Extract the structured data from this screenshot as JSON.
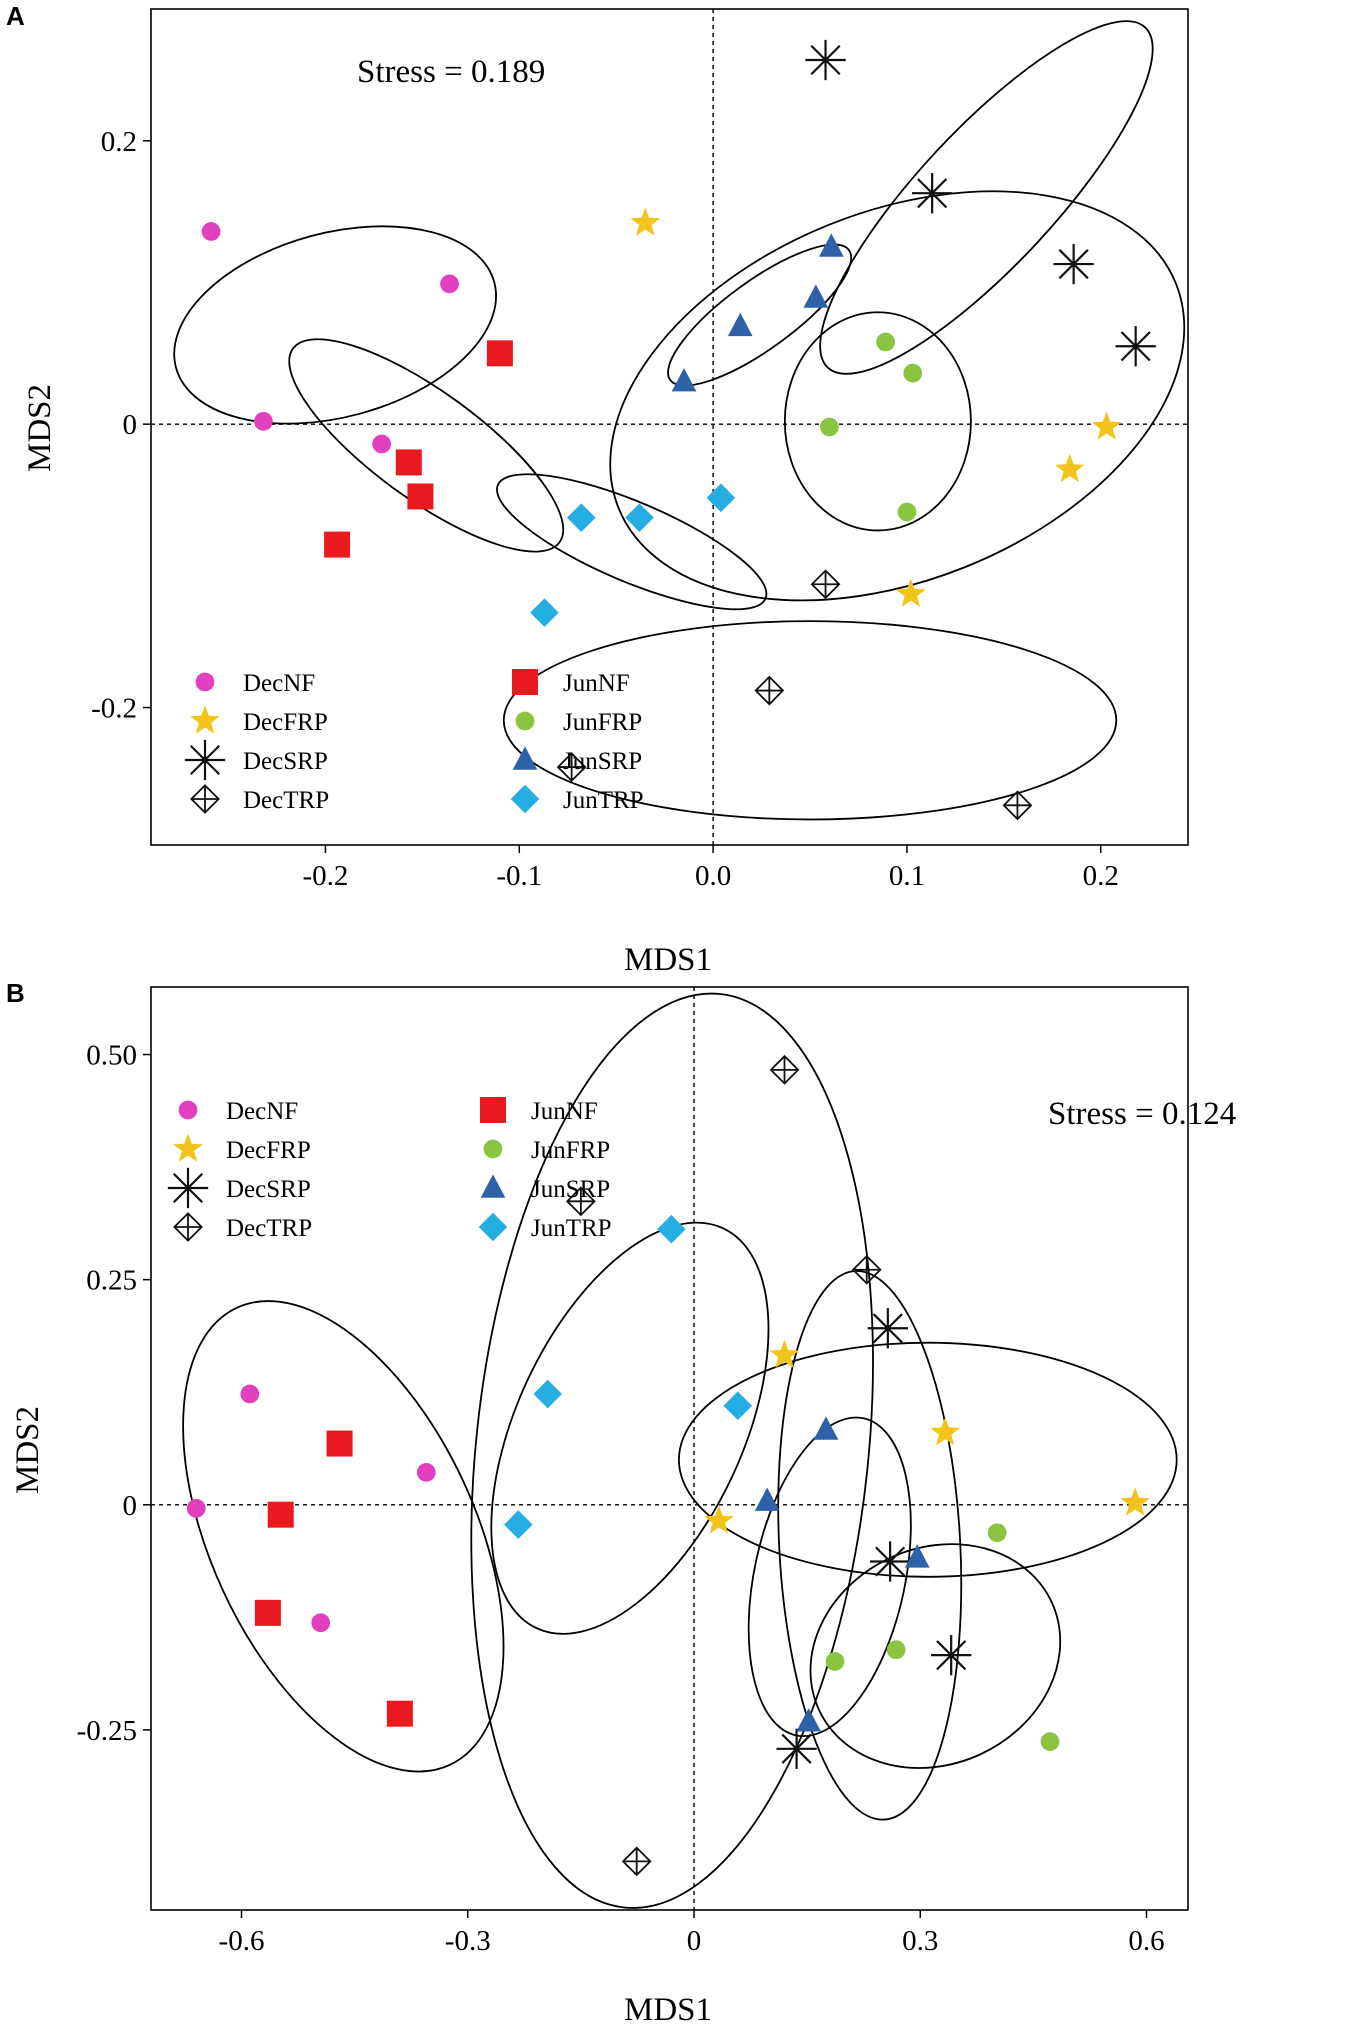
{
  "groups": {
    "DecNF": {
      "marker": "circle",
      "color": "#e23fbf"
    },
    "DecFRP": {
      "marker": "star",
      "color": "#f2c419"
    },
    "DecSRP": {
      "marker": "asterisk",
      "color": "#111111"
    },
    "DecTRP": {
      "marker": "crossdiamond",
      "color": "#111111"
    },
    "JunNF": {
      "marker": "square",
      "color": "#e8191f"
    },
    "JunFRP": {
      "marker": "circle",
      "color": "#8ac441"
    },
    "JunSRP": {
      "marker": "triangle",
      "color": "#2e62a8"
    },
    "JunTRP": {
      "marker": "diamond",
      "color": "#26aee3"
    }
  },
  "legend_order": [
    [
      "DecNF",
      "JunNF"
    ],
    [
      "DecFRP",
      "JunFRP"
    ],
    [
      "DecSRP",
      "JunSRP"
    ],
    [
      "DecTRP",
      "JunTRP"
    ]
  ],
  "chart_data": [
    {
      "panel": "A",
      "type": "scatter",
      "title": "",
      "annotation": "Stress = 0.189",
      "xlabel": "MDS1",
      "ylabel": "MDS2",
      "xlim": [
        -0.29,
        0.245
      ],
      "ylim": [
        -0.297,
        0.293
      ],
      "xticks": [
        -0.2,
        -0.1,
        0.0,
        0.1,
        0.2
      ],
      "xtick_labels": [
        "-0.2",
        "-0.1",
        "0.0",
        "0.1",
        "0.2"
      ],
      "yticks": [
        -0.2,
        0,
        0.2
      ],
      "ytick_labels": [
        "-0.2",
        "0",
        "0.2"
      ],
      "reference_lines": {
        "x": 0,
        "y": 0
      },
      "legend_position": "bottom-left",
      "series": [
        {
          "name": "DecNF",
          "points": [
            [
              -0.259,
              0.136
            ],
            [
              -0.136,
              0.099
            ],
            [
              -0.232,
              0.002
            ],
            [
              -0.171,
              -0.014
            ]
          ]
        },
        {
          "name": "JunNF",
          "points": [
            [
              -0.11,
              0.05
            ],
            [
              -0.157,
              -0.027
            ],
            [
              -0.151,
              -0.051
            ],
            [
              -0.194,
              -0.085
            ]
          ]
        },
        {
          "name": "DecFRP",
          "points": [
            [
              -0.035,
              0.142
            ],
            [
              0.203,
              -0.002
            ],
            [
              0.184,
              -0.032
            ],
            [
              0.102,
              -0.12
            ]
          ]
        },
        {
          "name": "JunFRP",
          "points": [
            [
              0.089,
              0.058
            ],
            [
              0.103,
              0.036
            ],
            [
              0.06,
              -0.002
            ],
            [
              0.1,
              -0.062
            ]
          ]
        },
        {
          "name": "DecSRP",
          "points": [
            [
              0.058,
              0.257
            ],
            [
              0.113,
              0.163
            ],
            [
              0.186,
              0.113
            ],
            [
              0.218,
              0.055
            ]
          ]
        },
        {
          "name": "JunSRP",
          "points": [
            [
              -0.015,
              0.03
            ],
            [
              0.014,
              0.069
            ],
            [
              0.053,
              0.089
            ],
            [
              0.061,
              0.125
            ]
          ]
        },
        {
          "name": "DecTRP",
          "points": [
            [
              0.058,
              -0.113
            ],
            [
              0.029,
              -0.188
            ],
            [
              -0.073,
              -0.242
            ],
            [
              0.157,
              -0.269
            ]
          ]
        },
        {
          "name": "JunTRP",
          "points": [
            [
              -0.087,
              -0.133
            ],
            [
              -0.068,
              -0.066
            ],
            [
              -0.038,
              -0.066
            ],
            [
              0.004,
              -0.052
            ]
          ]
        }
      ],
      "ellipses": [
        {
          "group": "DecNF",
          "cx": -0.195,
          "cy": 0.07,
          "rx": 0.085,
          "ry": 0.065,
          "angle": -15
        },
        {
          "group": "JunNF",
          "cx": -0.148,
          "cy": -0.015,
          "rx": 0.085,
          "ry": 0.038,
          "angle": 36
        },
        {
          "group": "DecFRP",
          "cx": 0.095,
          "cy": 0.02,
          "rx": 0.155,
          "ry": 0.13,
          "angle": -22
        },
        {
          "group": "JunFRP",
          "cx": 0.085,
          "cy": 0.002,
          "rx": 0.048,
          "ry": 0.077,
          "angle": 0
        },
        {
          "group": "DecSRP",
          "cx": 0.141,
          "cy": 0.16,
          "rx": 0.12,
          "ry": 0.048,
          "angle": -47
        },
        {
          "group": "JunSRP",
          "cx": 0.024,
          "cy": 0.077,
          "rx": 0.057,
          "ry": 0.024,
          "angle": -36
        },
        {
          "group": "DecTRP",
          "cx": 0.05,
          "cy": -0.209,
          "rx": 0.158,
          "ry": 0.07,
          "angle": 0
        },
        {
          "group": "JunTRP",
          "cx": -0.042,
          "cy": -0.083,
          "rx": 0.075,
          "ry": 0.028,
          "angle": 23
        }
      ]
    },
    {
      "panel": "B",
      "type": "scatter",
      "title": "",
      "annotation": "Stress = 0.124",
      "xlabel": "MDS1",
      "ylabel": "MDS2",
      "xlim": [
        -0.72,
        0.655
      ],
      "ylim": [
        -0.45,
        0.575
      ],
      "xticks": [
        -0.6,
        -0.3,
        0,
        0.3,
        0.6
      ],
      "xtick_labels": [
        "-0.6",
        "-0.3",
        "0",
        "0.3",
        "0.6"
      ],
      "yticks": [
        -0.25,
        0,
        0.25,
        0.5
      ],
      "ytick_labels": [
        "-0.25",
        "0",
        "0.25",
        "0.50"
      ],
      "reference_lines": {
        "x": 0,
        "y": 0
      },
      "legend_position": "top-left",
      "series": [
        {
          "name": "DecNF",
          "points": [
            [
              -0.589,
              0.123
            ],
            [
              -0.355,
              0.036
            ],
            [
              -0.66,
              -0.004
            ],
            [
              -0.495,
              -0.131
            ]
          ]
        },
        {
          "name": "JunNF",
          "points": [
            [
              -0.47,
              0.068
            ],
            [
              -0.548,
              -0.011
            ],
            [
              -0.565,
              -0.12
            ],
            [
              -0.39,
              -0.232
            ]
          ]
        },
        {
          "name": "DecFRP",
          "points": [
            [
              0.12,
              0.166
            ],
            [
              0.333,
              0.08
            ],
            [
              0.033,
              -0.018
            ],
            [
              0.585,
              0.002
            ]
          ]
        },
        {
          "name": "JunFRP",
          "points": [
            [
              0.402,
              -0.031
            ],
            [
              0.187,
              -0.174
            ],
            [
              0.268,
              -0.161
            ],
            [
              0.472,
              -0.263
            ]
          ]
        },
        {
          "name": "DecSRP",
          "points": [
            [
              0.257,
              0.196
            ],
            [
              0.26,
              -0.063
            ],
            [
              0.341,
              -0.167
            ],
            [
              0.136,
              -0.271
            ]
          ]
        },
        {
          "name": "JunSRP",
          "points": [
            [
              0.175,
              0.083
            ],
            [
              0.097,
              0.004
            ],
            [
              0.296,
              -0.059
            ],
            [
              0.152,
              -0.241
            ]
          ]
        },
        {
          "name": "DecTRP",
          "points": [
            [
              0.12,
              0.483
            ],
            [
              -0.15,
              0.337
            ],
            [
              0.229,
              0.261
            ],
            [
              -0.076,
              -0.396
            ]
          ]
        },
        {
          "name": "JunTRP",
          "points": [
            [
              -0.03,
              0.306
            ],
            [
              -0.194,
              0.123
            ],
            [
              0.058,
              0.11
            ],
            [
              -0.233,
              -0.022
            ]
          ]
        }
      ],
      "ellipses": [
        {
          "group": "DecNF",
          "cx": -0.465,
          "cy": -0.035,
          "rx": 0.175,
          "ry": 0.28,
          "angle": -25
        },
        {
          "group": "DecSRP",
          "cx": 0.233,
          "cy": -0.045,
          "rx": 0.12,
          "ry": 0.305,
          "angle": -3
        },
        {
          "group": "DecTRP",
          "cx": -0.029,
          "cy": 0.06,
          "rx": 0.26,
          "ry": 0.51,
          "angle": 6
        },
        {
          "group": "JunTRP",
          "cx": -0.085,
          "cy": 0.085,
          "rx": 0.15,
          "ry": 0.245,
          "angle": 25
        },
        {
          "group": "DecFRP",
          "cx": 0.31,
          "cy": 0.05,
          "rx": 0.33,
          "ry": 0.13,
          "angle": 0
        },
        {
          "group": "JunSRP",
          "cx": 0.18,
          "cy": -0.08,
          "rx": 0.1,
          "ry": 0.18,
          "angle": 12
        },
        {
          "group": "JunFRP",
          "cx": 0.32,
          "cy": -0.168,
          "rx": 0.17,
          "ry": 0.12,
          "angle": -25
        }
      ]
    }
  ]
}
